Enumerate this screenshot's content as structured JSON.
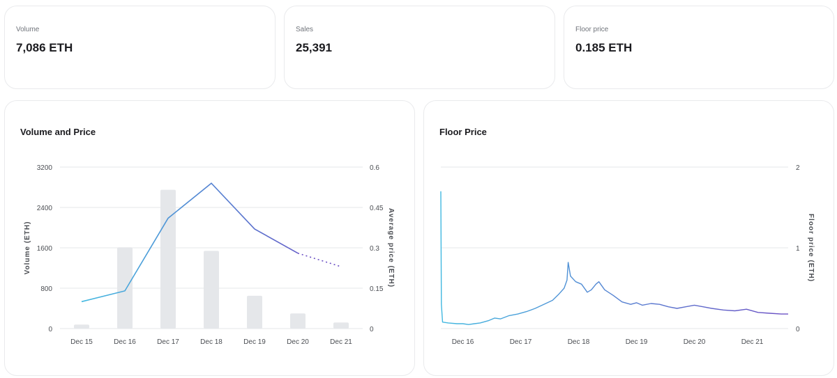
{
  "stats": [
    {
      "label": "Volume",
      "value": "7,086 ETH"
    },
    {
      "label": "Sales",
      "value": "25,391"
    },
    {
      "label": "Floor price",
      "value": "0.185 ETH"
    }
  ],
  "colors": {
    "bar": "#e5e7ea",
    "line_start": "#41b8e0",
    "line_end": "#6b4fc4",
    "grid": "#e6e7ea",
    "tick": "#4a4d52"
  },
  "chart_data": [
    {
      "type": "bar+line",
      "title": "Volume and Price",
      "categories": [
        "Dec 15",
        "Dec 16",
        "Dec 17",
        "Dec 18",
        "Dec 19",
        "Dec 20",
        "Dec 21"
      ],
      "series": [
        {
          "name": "Volume (ETH)",
          "axis": "left",
          "kind": "bar",
          "values": [
            80,
            1610,
            2750,
            1540,
            650,
            300,
            120
          ]
        },
        {
          "name": "Average price (ETH)",
          "axis": "right",
          "kind": "line",
          "values": [
            0.1,
            0.14,
            0.41,
            0.54,
            0.37,
            0.28,
            0.23
          ],
          "projected_from_index": 5
        }
      ],
      "ylabel": "Volume (ETH)",
      "ylabel_right": "Average price (ETH)",
      "yticks": [
        "0",
        "800",
        "1600",
        "2400",
        "3200"
      ],
      "yticks_right": [
        "0",
        "0.15",
        "0.3",
        "0.45",
        "0.6"
      ],
      "ylim": [
        0,
        3200
      ],
      "ylim_right": [
        0,
        0.6
      ],
      "grid": true
    },
    {
      "type": "line",
      "title": "Floor Price",
      "ylabel_right": "Floor price (ETH)",
      "yticks_right": [
        "0",
        "1",
        "2"
      ],
      "ylim_right": [
        0,
        2
      ],
      "xticks": [
        "Dec 16",
        "Dec 17",
        "Dec 18",
        "Dec 19",
        "Dec 20",
        "Dec 21"
      ],
      "x_days": [
        15.62,
        21.62
      ],
      "points": [
        [
          15.62,
          1.7
        ],
        [
          15.63,
          0.3
        ],
        [
          15.65,
          0.08
        ],
        [
          15.75,
          0.07
        ],
        [
          15.9,
          0.06
        ],
        [
          16.0,
          0.06
        ],
        [
          16.1,
          0.05
        ],
        [
          16.2,
          0.06
        ],
        [
          16.3,
          0.07
        ],
        [
          16.45,
          0.1
        ],
        [
          16.55,
          0.13
        ],
        [
          16.65,
          0.12
        ],
        [
          16.8,
          0.16
        ],
        [
          16.95,
          0.18
        ],
        [
          17.1,
          0.21
        ],
        [
          17.25,
          0.25
        ],
        [
          17.4,
          0.3
        ],
        [
          17.55,
          0.35
        ],
        [
          17.65,
          0.42
        ],
        [
          17.75,
          0.5
        ],
        [
          17.8,
          0.6
        ],
        [
          17.82,
          0.82
        ],
        [
          17.86,
          0.65
        ],
        [
          17.95,
          0.58
        ],
        [
          18.05,
          0.55
        ],
        [
          18.15,
          0.45
        ],
        [
          18.22,
          0.48
        ],
        [
          18.3,
          0.55
        ],
        [
          18.35,
          0.58
        ],
        [
          18.45,
          0.48
        ],
        [
          18.6,
          0.41
        ],
        [
          18.75,
          0.33
        ],
        [
          18.9,
          0.3
        ],
        [
          19.0,
          0.32
        ],
        [
          19.1,
          0.29
        ],
        [
          19.25,
          0.31
        ],
        [
          19.4,
          0.3
        ],
        [
          19.55,
          0.27
        ],
        [
          19.7,
          0.25
        ],
        [
          19.85,
          0.27
        ],
        [
          20.0,
          0.29
        ],
        [
          20.15,
          0.27
        ],
        [
          20.3,
          0.25
        ],
        [
          20.5,
          0.23
        ],
        [
          20.7,
          0.22
        ],
        [
          20.9,
          0.24
        ],
        [
          21.1,
          0.2
        ],
        [
          21.3,
          0.19
        ],
        [
          21.5,
          0.18
        ],
        [
          21.62,
          0.18
        ]
      ],
      "grid": true
    }
  ]
}
